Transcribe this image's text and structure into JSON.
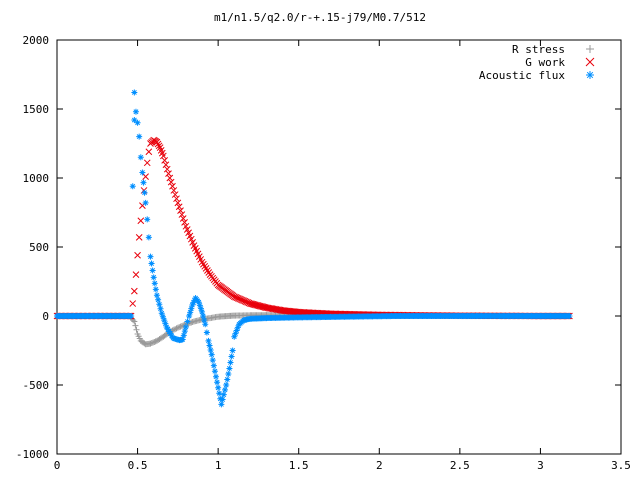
{
  "chart_data": {
    "type": "scatter",
    "title": "m1/n1.5/q2.0/r-+.15-j79/M0.7/512",
    "xlabel": "",
    "ylabel": "",
    "xlim": [
      0,
      3.5
    ],
    "ylim": [
      -1000,
      2000
    ],
    "xticks": [
      "0",
      "0.5",
      "1",
      "1.5",
      "2",
      "2.5",
      "3",
      "3.5"
    ],
    "yticks": [
      "-1000",
      "-500",
      "0",
      "500",
      "1000",
      "1500",
      "2000"
    ],
    "grid": false,
    "legend": "top-right",
    "series": [
      {
        "name": "R stress",
        "marker": "plus",
        "color": "#999999",
        "points": [
          [
            0,
            0
          ],
          [
            0.25,
            0
          ],
          [
            0.45,
            0
          ],
          [
            0.48,
            -40
          ],
          [
            0.5,
            -130
          ],
          [
            0.52,
            -180
          ],
          [
            0.55,
            -205
          ],
          [
            0.58,
            -200
          ],
          [
            0.62,
            -180
          ],
          [
            0.66,
            -150
          ],
          [
            0.7,
            -115
          ],
          [
            0.75,
            -85
          ],
          [
            0.8,
            -60
          ],
          [
            0.85,
            -40
          ],
          [
            0.9,
            -25
          ],
          [
            0.95,
            -15
          ],
          [
            1.0,
            -5
          ],
          [
            1.1,
            3
          ],
          [
            1.2,
            5
          ],
          [
            1.3,
            6
          ],
          [
            1.5,
            5
          ],
          [
            1.7,
            4
          ],
          [
            2.0,
            2
          ],
          [
            2.5,
            1
          ],
          [
            3.0,
            0
          ],
          [
            3.18,
            0
          ]
        ]
      },
      {
        "name": "G work",
        "marker": "cross",
        "color": "#e8000b",
        "points": [
          [
            0,
            0
          ],
          [
            0.25,
            0
          ],
          [
            0.46,
            0
          ],
          [
            0.48,
            180
          ],
          [
            0.49,
            300
          ],
          [
            0.5,
            440
          ],
          [
            0.51,
            570
          ],
          [
            0.52,
            690
          ],
          [
            0.53,
            800
          ],
          [
            0.54,
            910
          ],
          [
            0.55,
            1010
          ],
          [
            0.56,
            1110
          ],
          [
            0.57,
            1190
          ],
          [
            0.58,
            1250
          ],
          [
            0.6,
            1275
          ],
          [
            0.62,
            1260
          ],
          [
            0.64,
            1220
          ],
          [
            0.66,
            1160
          ],
          [
            0.7,
            1000
          ],
          [
            0.75,
            820
          ],
          [
            0.8,
            650
          ],
          [
            0.85,
            510
          ],
          [
            0.9,
            390
          ],
          [
            0.95,
            300
          ],
          [
            1.0,
            225
          ],
          [
            1.1,
            140
          ],
          [
            1.2,
            90
          ],
          [
            1.3,
            60
          ],
          [
            1.4,
            40
          ],
          [
            1.5,
            28
          ],
          [
            1.7,
            16
          ],
          [
            2.0,
            8
          ],
          [
            2.3,
            4
          ],
          [
            2.5,
            2
          ],
          [
            2.8,
            1
          ],
          [
            3.0,
            0
          ],
          [
            3.18,
            0
          ]
        ]
      },
      {
        "name": "Acoustic flux",
        "marker": "star",
        "color": "#008fff",
        "points": [
          [
            0,
            0
          ],
          [
            0.3,
            0
          ],
          [
            0.46,
            0
          ],
          [
            0.47,
            940
          ],
          [
            0.48,
            1620
          ],
          [
            0.48,
            1420
          ],
          [
            0.49,
            1480
          ],
          [
            0.5,
            1400
          ],
          [
            0.51,
            1300
          ],
          [
            0.52,
            1150
          ],
          [
            0.53,
            1040
          ],
          [
            0.55,
            820
          ],
          [
            0.56,
            700
          ],
          [
            0.57,
            570
          ],
          [
            0.58,
            430
          ],
          [
            0.6,
            280
          ],
          [
            0.62,
            150
          ],
          [
            0.65,
            20
          ],
          [
            0.68,
            -80
          ],
          [
            0.72,
            -160
          ],
          [
            0.76,
            -175
          ],
          [
            0.78,
            -170
          ],
          [
            0.8,
            -80
          ],
          [
            0.82,
            0
          ],
          [
            0.84,
            80
          ],
          [
            0.86,
            130
          ],
          [
            0.88,
            100
          ],
          [
            0.9,
            30
          ],
          [
            0.92,
            -60
          ],
          [
            0.94,
            -180
          ],
          [
            0.96,
            -280
          ],
          [
            0.98,
            -400
          ],
          [
            1.0,
            -520
          ],
          [
            1.02,
            -640
          ],
          [
            1.05,
            -500
          ],
          [
            1.07,
            -380
          ],
          [
            1.09,
            -250
          ],
          [
            1.1,
            -150
          ],
          [
            1.13,
            -60
          ],
          [
            1.16,
            -30
          ],
          [
            1.2,
            -20
          ],
          [
            1.3,
            -15
          ],
          [
            1.5,
            -10
          ],
          [
            1.8,
            -5
          ],
          [
            2.1,
            0
          ],
          [
            2.5,
            0
          ],
          [
            3.0,
            0
          ],
          [
            3.18,
            0
          ]
        ]
      }
    ]
  }
}
